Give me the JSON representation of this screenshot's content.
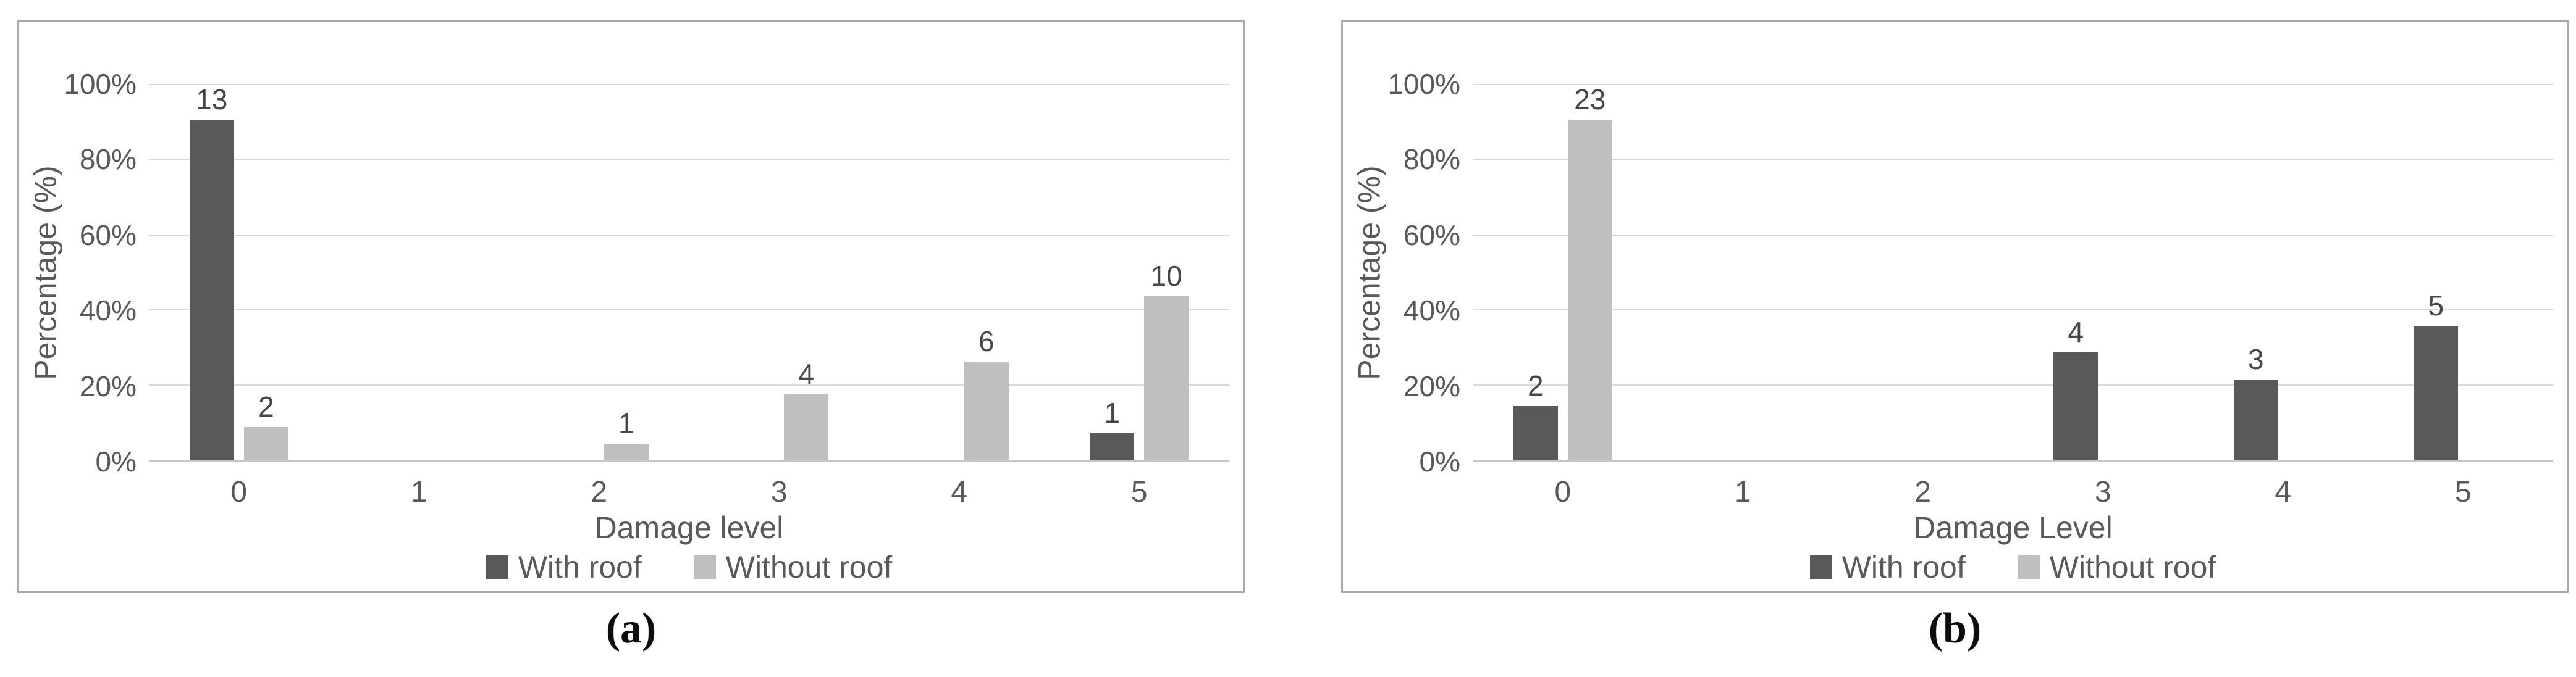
{
  "colors": {
    "with_roof": "#595959",
    "without_roof": "#bfbfbf",
    "gridline": "#d9d9d9",
    "axis_baseline": "#c6c6c6",
    "axis_text": "#595959",
    "data_label_text": "#474747",
    "panel_border": "#a9a9a9",
    "caption_text": "#0d0d0d"
  },
  "chart_data": [
    {
      "type": "bar",
      "caption": "(a)",
      "title": "",
      "xlabel": "Damage level",
      "ylabel": "Percentage (%)",
      "ylim": [
        0,
        100
      ],
      "grid": true,
      "legend_position": "bottom",
      "y_tick_labels": [
        "0%",
        "20%",
        "40%",
        "60%",
        "80%",
        "100%"
      ],
      "y_tick_values": [
        0,
        20,
        40,
        60,
        80,
        100
      ],
      "categories": [
        "0",
        "1",
        "2",
        "3",
        "4",
        "5"
      ],
      "series": [
        {
          "name": "With roof",
          "color": "#595959",
          "counts": [
            13,
            0,
            0,
            0,
            0,
            1
          ],
          "percent": [
            92.9,
            0,
            0,
            0,
            0,
            7.1
          ]
        },
        {
          "name": "Without roof",
          "color": "#bfbfbf",
          "counts": [
            2,
            0,
            1,
            4,
            6,
            10
          ],
          "percent": [
            8.7,
            0,
            4.3,
            17.4,
            26.1,
            43.5
          ]
        }
      ]
    },
    {
      "type": "bar",
      "caption": "(b)",
      "title": "",
      "xlabel": "Damage Level",
      "ylabel": "Percentage (%)",
      "ylim": [
        0,
        100
      ],
      "grid": true,
      "legend_position": "bottom",
      "y_tick_labels": [
        "0%",
        "20%",
        "40%",
        "60%",
        "80%",
        "100%"
      ],
      "y_tick_values": [
        0,
        20,
        40,
        60,
        80,
        100
      ],
      "categories": [
        "0",
        "1",
        "2",
        "3",
        "4",
        "5"
      ],
      "series": [
        {
          "name": "With roof",
          "color": "#595959",
          "counts": [
            2,
            0,
            0,
            4,
            3,
            5
          ],
          "percent": [
            14.3,
            0,
            0,
            28.6,
            21.4,
            35.7
          ]
        },
        {
          "name": "Without roof",
          "color": "#bfbfbf",
          "counts": [
            23,
            0,
            0,
            0,
            0,
            0
          ],
          "percent": [
            100,
            0,
            0,
            0,
            0,
            0
          ]
        }
      ]
    }
  ]
}
